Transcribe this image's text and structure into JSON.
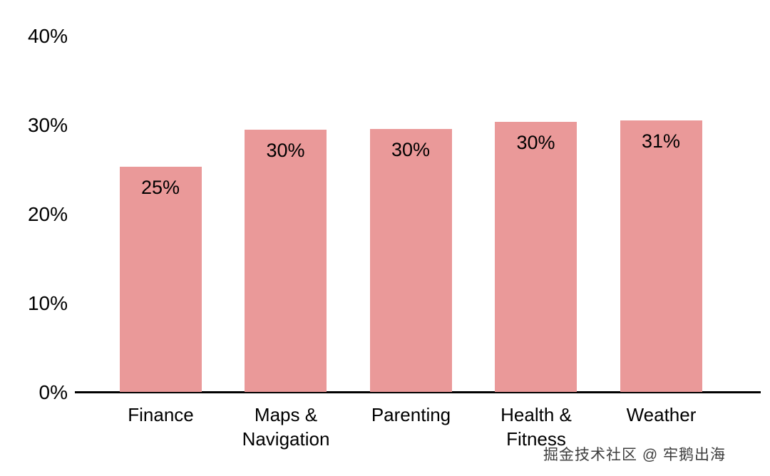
{
  "chart_data": {
    "type": "bar",
    "title": "",
    "xlabel": "",
    "ylabel": "",
    "categories": [
      "Finance",
      "Maps & Navigation",
      "Parenting",
      "Health & Fitness",
      "Weather"
    ],
    "values": [
      25.4,
      29.5,
      29.6,
      30.4,
      30.6
    ],
    "data_labels": [
      "25%",
      "30%",
      "30%",
      "30%",
      "31%"
    ],
    "ylim": [
      0,
      40
    ],
    "yticks": [
      0,
      10,
      20,
      30,
      40
    ],
    "ytick_labels": [
      "0%",
      "10%",
      "20%",
      "30%",
      "40%"
    ],
    "bar_color": "#ea9999",
    "axis_color": "#000000",
    "grid": false,
    "legend": false
  },
  "watermark": {
    "text": "掘金技术社区 @ 牢鹅出海"
  }
}
